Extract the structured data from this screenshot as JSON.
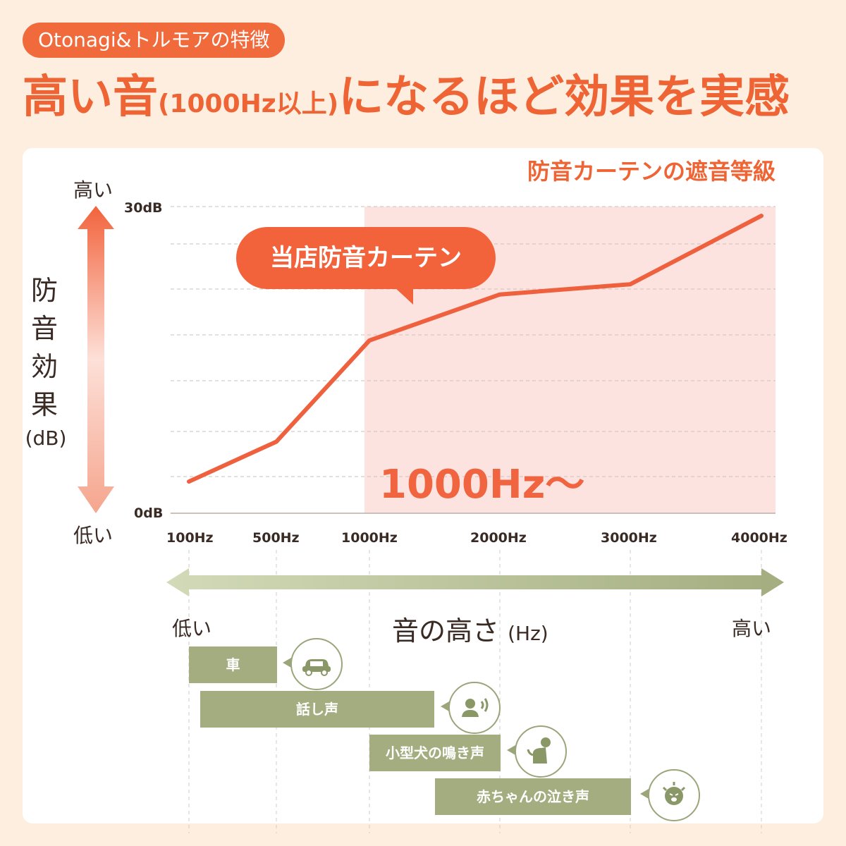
{
  "badge": "Otonagi&トルモアの特徴",
  "headline": {
    "part1": "高い音",
    "part2": "(1000Hz以上)",
    "part3": "になるほど効果を実感"
  },
  "colors": {
    "accent": "#ef6434",
    "line": "#ee603e",
    "zone": "#fde3df",
    "green": "#a3ad7f",
    "background": "#fdeee0"
  },
  "chart_data": {
    "type": "line",
    "title": "防音カーテンの遮音等級",
    "ylabel": "防音効果",
    "ylabel_unit": "(dB)",
    "y_high_label": "高い",
    "y_low_label": "低い",
    "y_ticks": [
      "30dB",
      "0dB"
    ],
    "ylim": [
      0,
      30
    ],
    "x_ticks": [
      "100Hz",
      "500Hz",
      "1000Hz",
      "2000Hz",
      "3000Hz",
      "4000Hz"
    ],
    "x_title": "音の高さ",
    "x_title_unit": "(Hz)",
    "x_low_label": "低い",
    "x_high_label": "高い",
    "grid": true,
    "series": [
      {
        "name": "当店防音カーテン",
        "points": [
          {
            "x": "100Hz",
            "y": 3.1
          },
          {
            "x": "500Hz",
            "y": 7.0
          },
          {
            "x": "1000Hz",
            "y": 16.9
          },
          {
            "x": "2000Hz",
            "y": 21.4
          },
          {
            "x": "3000Hz",
            "y": 22.4
          },
          {
            "x": "4000Hz",
            "y": 29.1
          }
        ]
      }
    ],
    "highlight": {
      "label": "1000Hz〜",
      "from": "1000Hz",
      "to": "4000Hz"
    }
  },
  "sources": [
    {
      "label": "車",
      "icon": "car-icon",
      "from": "100Hz",
      "to": "500Hz"
    },
    {
      "label": "話し声",
      "icon": "speaking-person-icon",
      "from": "100Hz",
      "to": "2000Hz"
    },
    {
      "label": "小型犬の鳴き声",
      "icon": "dog-icon",
      "from": "1000Hz",
      "to": "2000Hz"
    },
    {
      "label": "赤ちゃんの泣き声",
      "icon": "crying-baby-icon",
      "from": "2000Hz",
      "to": "3000Hz"
    }
  ]
}
